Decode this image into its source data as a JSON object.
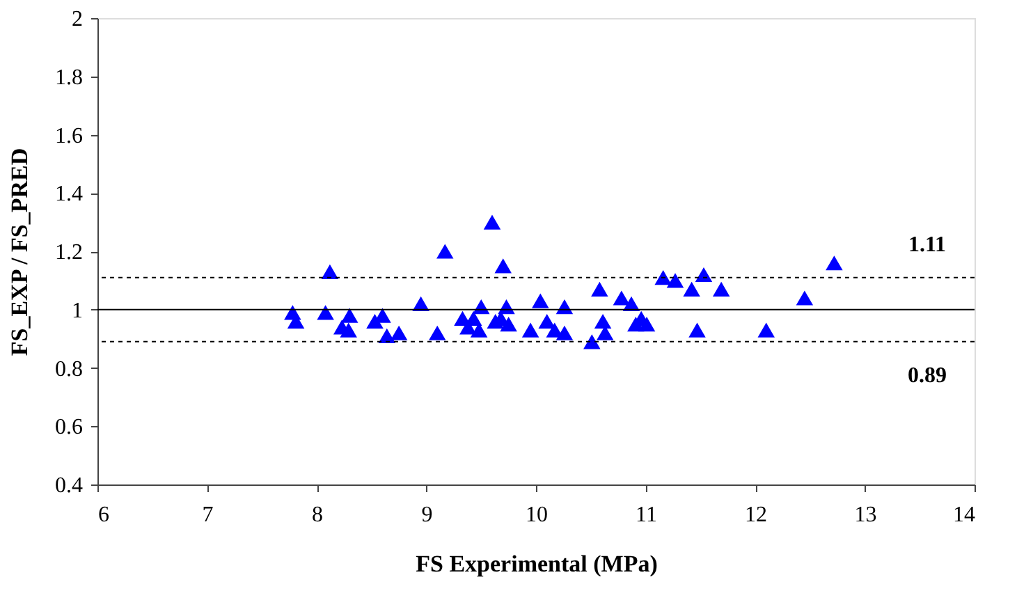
{
  "chart_data": {
    "type": "scatter",
    "xlabel": "FS Experimental (MPa)",
    "ylabel": "FS_EXP / FS_PRED",
    "x": [
      7.78,
      7.81,
      8.12,
      8.08,
      8.23,
      8.3,
      8.29,
      8.53,
      8.6,
      8.64,
      8.75,
      8.95,
      9.1,
      9.17,
      9.33,
      9.38,
      9.43,
      9.48,
      9.5,
      9.6,
      9.63,
      9.68,
      9.7,
      9.73,
      9.75,
      9.95,
      10.04,
      10.1,
      10.17,
      10.26,
      10.26,
      10.51,
      10.58,
      10.61,
      10.63,
      10.78,
      10.86,
      10.87,
      10.91,
      10.96,
      11.01,
      11.16,
      11.27,
      11.42,
      11.47,
      11.53,
      11.69,
      12.1,
      12.45,
      12.72
    ],
    "series": [
      {
        "color": "#0000ff",
        "values": [
          0.99,
          0.96,
          1.13,
          0.99,
          0.94,
          0.98,
          0.93,
          0.96,
          0.98,
          0.91,
          0.92,
          1.02,
          0.92,
          1.2,
          0.97,
          0.94,
          0.97,
          0.93,
          1.01,
          1.3,
          0.96,
          0.97,
          1.15,
          1.01,
          0.95,
          0.93,
          1.03,
          0.96,
          0.93,
          1.01,
          0.92,
          0.89,
          1.07,
          0.96,
          0.92,
          1.04,
          null,
          1.02,
          0.95,
          0.97,
          0.95,
          1.11,
          1.1,
          1.07,
          0.93,
          1.12,
          1.07,
          0.93,
          1.04,
          1.16
        ]
      }
    ],
    "marker": "triangle",
    "xlim": [
      6,
      14
    ],
    "xticks": [
      6,
      7,
      8,
      9,
      10,
      11,
      12,
      13,
      14
    ],
    "ylim": [
      0.4,
      2
    ],
    "yticks": [
      0.4,
      0.6,
      0.8,
      1,
      1.2,
      1.4,
      1.6,
      1.8,
      2
    ],
    "grid": false,
    "legend": false,
    "ref_lines": [
      {
        "axis": "y",
        "value": 1,
        "color": "#000000",
        "line_style": "solid"
      },
      {
        "axis": "y",
        "value": 1.11,
        "label": "1.11",
        "color": "#000000",
        "line_style": "dashed"
      },
      {
        "axis": "y",
        "value": 0.89,
        "label": "0.89",
        "color": "#000000",
        "line_style": "dashed"
      }
    ]
  }
}
